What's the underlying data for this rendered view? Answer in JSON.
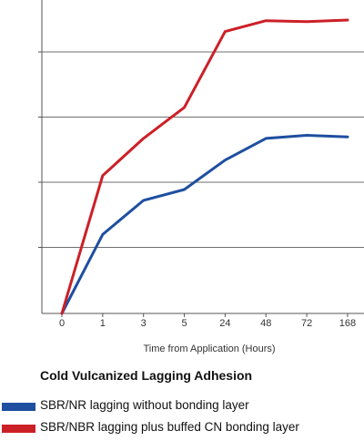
{
  "chart_data": {
    "type": "line",
    "categories": [
      "0",
      "1",
      "3",
      "5",
      "24",
      "48",
      "72",
      "168"
    ],
    "xlabel": "Time from Application (Hours)",
    "ylabel": "",
    "ylim": [
      0,
      100
    ],
    "grid": "horizontal",
    "series": [
      {
        "name": "SBR/NR lagging without bonding layer",
        "color": "#1e4fa0",
        "values": [
          0,
          25.5,
          36.5,
          40,
          49.5,
          56.5,
          57.5,
          57
        ]
      },
      {
        "name": "SBR/NBR lagging plus buffed CN bonding layer",
        "color": "#cc2027",
        "values": [
          0,
          44.5,
          56.5,
          66.5,
          91,
          94.5,
          94.2,
          94.7
        ]
      }
    ]
  },
  "legend": {
    "title": "Cold Vulcanized Lagging Adhesion"
  }
}
